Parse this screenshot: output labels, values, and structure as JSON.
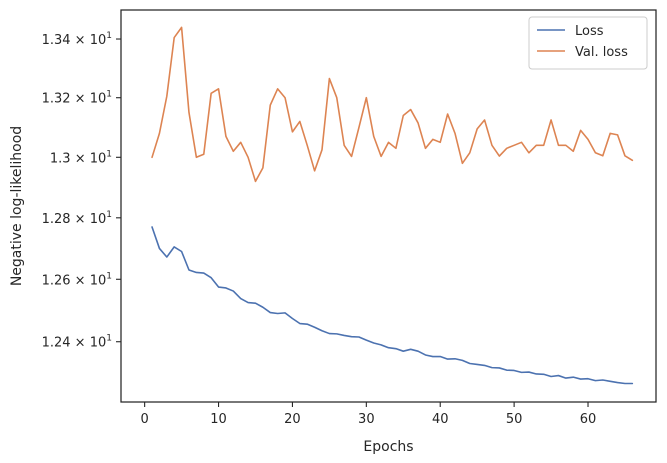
{
  "chart_data": {
    "type": "line",
    "title": "",
    "xlabel": "Epochs",
    "ylabel": "Negative log-likelihood",
    "y_scale": "log",
    "xlim": [
      -3.2,
      69.2
    ],
    "ylim": [
      12.21,
      13.5
    ],
    "x_ticks": [
      0,
      10,
      20,
      30,
      40,
      50,
      60
    ],
    "x_tick_labels": [
      "0",
      "10",
      "20",
      "30",
      "40",
      "50",
      "60"
    ],
    "y_ticks": [
      12.4,
      12.6,
      12.8,
      13.0,
      13.2,
      13.4
    ],
    "y_tick_labels": [
      {
        "mantissa": "1.24",
        "base": "10",
        "exp": "1"
      },
      {
        "mantissa": "1.26",
        "base": "10",
        "exp": "1"
      },
      {
        "mantissa": "1.28",
        "base": "10",
        "exp": "1"
      },
      {
        "mantissa": "1.3",
        "base": "10",
        "exp": "1"
      },
      {
        "mantissa": "1.32",
        "base": "10",
        "exp": "1"
      },
      {
        "mantissa": "1.34",
        "base": "10",
        "exp": "1"
      }
    ],
    "grid": false,
    "legend_position": "top-right",
    "x": [
      1,
      2,
      3,
      4,
      5,
      6,
      7,
      8,
      9,
      10,
      11,
      12,
      13,
      14,
      15,
      16,
      17,
      18,
      19,
      20,
      21,
      22,
      23,
      24,
      25,
      26,
      27,
      28,
      29,
      30,
      31,
      32,
      33,
      34,
      35,
      36,
      37,
      38,
      39,
      40,
      41,
      42,
      43,
      44,
      45,
      46,
      47,
      48,
      49,
      50,
      51,
      52,
      53,
      54,
      55,
      56,
      57,
      58,
      59,
      60,
      61,
      62,
      63,
      64,
      65,
      66
    ],
    "series": [
      {
        "name": "Loss",
        "color": "#4c72b0",
        "values": [
          12.77,
          12.7,
          12.672,
          12.705,
          12.69,
          12.63,
          12.622,
          12.62,
          12.605,
          12.575,
          12.572,
          12.562,
          12.538,
          12.525,
          12.523,
          12.51,
          12.493,
          12.49,
          12.492,
          12.474,
          12.458,
          12.456,
          12.446,
          12.435,
          12.426,
          12.425,
          12.42,
          12.416,
          12.415,
          12.405,
          12.396,
          12.39,
          12.381,
          12.378,
          12.37,
          12.376,
          12.37,
          12.358,
          12.353,
          12.353,
          12.345,
          12.346,
          12.341,
          12.331,
          12.328,
          12.325,
          12.318,
          12.317,
          12.31,
          12.309,
          12.303,
          12.304,
          12.298,
          12.297,
          12.29,
          12.293,
          12.285,
          12.288,
          12.282,
          12.283,
          12.277,
          12.279,
          12.275,
          12.271,
          12.268,
          12.268
        ]
      },
      {
        "name": "Val. loss",
        "color": "#dd8452",
        "values": [
          13.0,
          13.08,
          13.205,
          13.405,
          13.44,
          13.15,
          13.0,
          13.01,
          13.215,
          13.23,
          13.07,
          13.02,
          13.05,
          13.0,
          12.92,
          12.965,
          13.175,
          13.23,
          13.2,
          13.085,
          13.12,
          13.04,
          12.955,
          13.025,
          13.265,
          13.2,
          13.04,
          13.003,
          13.1,
          13.2,
          13.07,
          13.003,
          13.05,
          13.03,
          13.14,
          13.16,
          13.115,
          13.03,
          13.06,
          13.05,
          13.145,
          13.08,
          12.98,
          13.015,
          13.095,
          13.125,
          13.04,
          13.004,
          13.03,
          13.04,
          13.05,
          13.015,
          13.04,
          13.04,
          13.125,
          13.04,
          13.04,
          13.02,
          13.09,
          13.06,
          13.015,
          13.005,
          13.08,
          13.075,
          13.005,
          12.99
        ]
      }
    ]
  }
}
